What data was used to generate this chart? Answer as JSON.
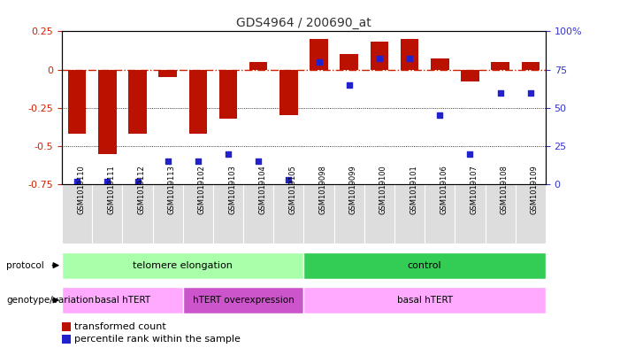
{
  "title": "GDS4964 / 200690_at",
  "samples": [
    "GSM1019110",
    "GSM1019111",
    "GSM1019112",
    "GSM1019113",
    "GSM1019102",
    "GSM1019103",
    "GSM1019104",
    "GSM1019105",
    "GSM1019098",
    "GSM1019099",
    "GSM1019100",
    "GSM1019101",
    "GSM1019106",
    "GSM1019107",
    "GSM1019108",
    "GSM1019109"
  ],
  "red_bars": [
    -0.42,
    -0.55,
    -0.42,
    -0.05,
    -0.42,
    -0.32,
    0.05,
    -0.3,
    0.2,
    0.1,
    0.18,
    0.2,
    0.07,
    -0.08,
    0.05,
    0.05
  ],
  "blue_dots": [
    2,
    2,
    2,
    15,
    15,
    20,
    15,
    3,
    80,
    65,
    82,
    82,
    45,
    20,
    60,
    60
  ],
  "ylim_left": [
    -0.75,
    0.25
  ],
  "ylim_right": [
    0,
    100
  ],
  "yticks_left": [
    -0.75,
    -0.5,
    -0.25,
    0,
    0.25
  ],
  "yticks_right": [
    0,
    25,
    50,
    75,
    100
  ],
  "protocol_groups": [
    {
      "label": "telomere elongation",
      "start": 0,
      "end": 8,
      "color": "#AAFFAA"
    },
    {
      "label": "control",
      "start": 8,
      "end": 16,
      "color": "#33CC55"
    }
  ],
  "genotype_groups": [
    {
      "label": "basal hTERT",
      "start": 0,
      "end": 4,
      "color": "#FFAAFF"
    },
    {
      "label": "hTERT overexpression",
      "start": 4,
      "end": 8,
      "color": "#CC55CC"
    },
    {
      "label": "basal hTERT",
      "start": 8,
      "end": 16,
      "color": "#FFAAFF"
    }
  ],
  "bar_color": "#BB1100",
  "dot_color": "#2222CC",
  "zero_line_color": "#CC2200",
  "title_color": "#333333",
  "label_left_color": "#CC2200",
  "label_right_color": "#3333CC",
  "bg_color": "#FFFFFF",
  "sample_bg_color": "#DDDDDD"
}
